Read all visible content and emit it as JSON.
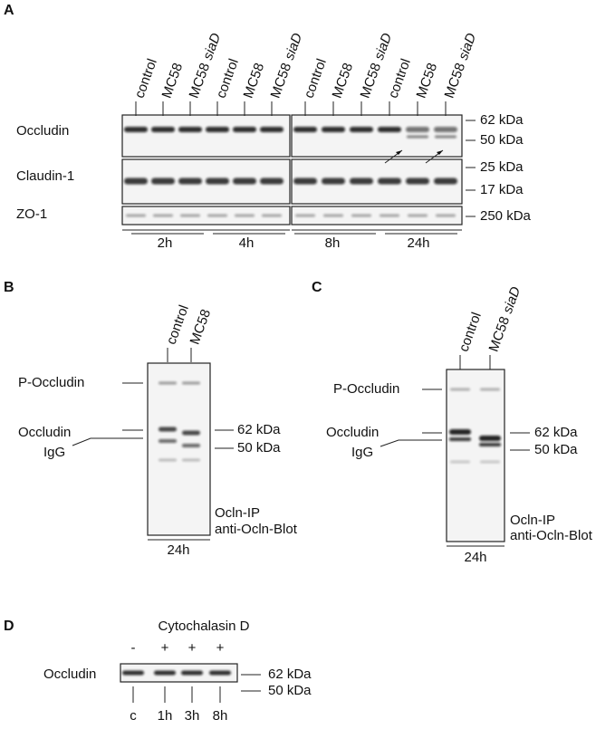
{
  "panel_a": {
    "label": "A",
    "lanes": [
      {
        "text": "control"
      },
      {
        "text": "MC58"
      },
      {
        "text": "MC58",
        "italic": "siaD"
      },
      {
        "text": "control"
      },
      {
        "text": "MC58"
      },
      {
        "text": "MC58",
        "italic": "siaD"
      },
      {
        "text": "control"
      },
      {
        "text": "MC58"
      },
      {
        "text": "MC58",
        "italic": "siaD"
      },
      {
        "text": "control"
      },
      {
        "text": "MC58"
      },
      {
        "text": "MC58",
        "italic": "siaD"
      }
    ],
    "rows": [
      "Occludin",
      "Claudin-1",
      "ZO-1"
    ],
    "markers": [
      "62 kDa",
      "50 kDa",
      "25 kDa",
      "17 kDa",
      "250 kDa"
    ],
    "times": [
      "2h",
      "4h",
      "8h",
      "24h"
    ]
  },
  "panel_b": {
    "label": "B",
    "lanes": [
      {
        "text": "control"
      },
      {
        "text": "MC58"
      }
    ],
    "left_labels": [
      "P-Occludin",
      "Occludin",
      "IgG"
    ],
    "markers": [
      "62 kDa",
      "50 kDa"
    ],
    "note": [
      "Ocln-IP",
      "anti-Ocln-Blot"
    ],
    "time": "24h"
  },
  "panel_c": {
    "label": "C",
    "lanes": [
      {
        "text": "control"
      },
      {
        "text": "MC58",
        "italic": "siaD"
      }
    ],
    "left_labels": [
      "P-Occludin",
      "Occludin",
      "IgG"
    ],
    "markers": [
      "62 kDa",
      "50 kDa"
    ],
    "note": [
      "Ocln-IP",
      "anti-Ocln-Blot"
    ],
    "time": "24h"
  },
  "panel_d": {
    "label": "D",
    "treatment": "Cytochalasin D",
    "signs": [
      "-",
      "+",
      "+",
      "+"
    ],
    "row": "Occludin",
    "markers": [
      "62 kDa",
      "50 kDa"
    ],
    "times": [
      "c",
      "1h",
      "3h",
      "8h"
    ]
  }
}
